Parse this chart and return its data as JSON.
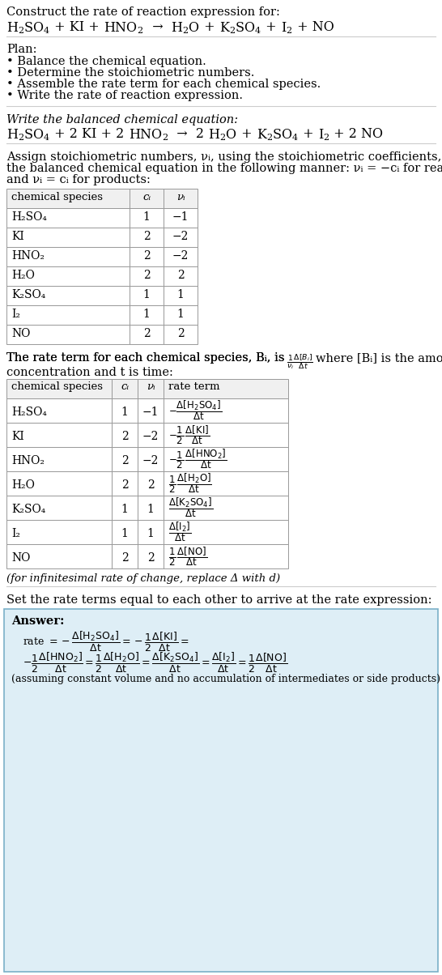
{
  "title": "Construct the rate of reaction expression for:",
  "plan_header": "Plan:",
  "plan_items": [
    "• Balance the chemical equation.",
    "• Determine the stoichiometric numbers.",
    "• Assemble the rate term for each chemical species.",
    "• Write the rate of reaction expression."
  ],
  "balanced_header": "Write the balanced chemical equation:",
  "stoich_intro_lines": [
    "Assign stoichiometric numbers, νᵢ, using the stoichiometric coefficients, cᵢ, from",
    "the balanced chemical equation in the following manner: νᵢ = −cᵢ for reactants",
    "and νᵢ = cᵢ for products:"
  ],
  "table1_headers": [
    "chemical species",
    "cᵢ",
    "νᵢ"
  ],
  "table1_species": [
    "H₂SO₄",
    "KI",
    "HNO₂",
    "H₂O",
    "K₂SO₄",
    "I₂",
    "NO"
  ],
  "table1_ci": [
    "1",
    "2",
    "2",
    "2",
    "1",
    "1",
    "2"
  ],
  "table1_ni": [
    "−1",
    "−2",
    "−2",
    "2",
    "1",
    "1",
    "2"
  ],
  "rate_term_line1": "The rate term for each chemical species, Bᵢ, is",
  "rate_term_line2": "where [Bᵢ] is the amount",
  "rate_term_line3": "concentration and t is time:",
  "table2_headers": [
    "chemical species",
    "cᵢ",
    "νᵢ",
    "rate term"
  ],
  "table2_species": [
    "H₂SO₄",
    "KI",
    "HNO₂",
    "H₂O",
    "K₂SO₄",
    "I₂",
    "NO"
  ],
  "table2_ci": [
    "1",
    "2",
    "2",
    "2",
    "1",
    "1",
    "2"
  ],
  "table2_ni": [
    "−1",
    "−2",
    "−2",
    "2",
    "1",
    "1",
    "2"
  ],
  "infinitesimal_note": "(for infinitesimal rate of change, replace Δ with d)",
  "set_equal_text": "Set the rate terms equal to each other to arrive at the rate expression:",
  "answer_box_color": "#deeef6",
  "answer_box_border": "#7ab0c8",
  "answer_label": "Answer:",
  "final_note": "(assuming constant volume and no accumulation of intermediates or side products)",
  "bg_color": "#ffffff",
  "table_border_color": "#999999"
}
